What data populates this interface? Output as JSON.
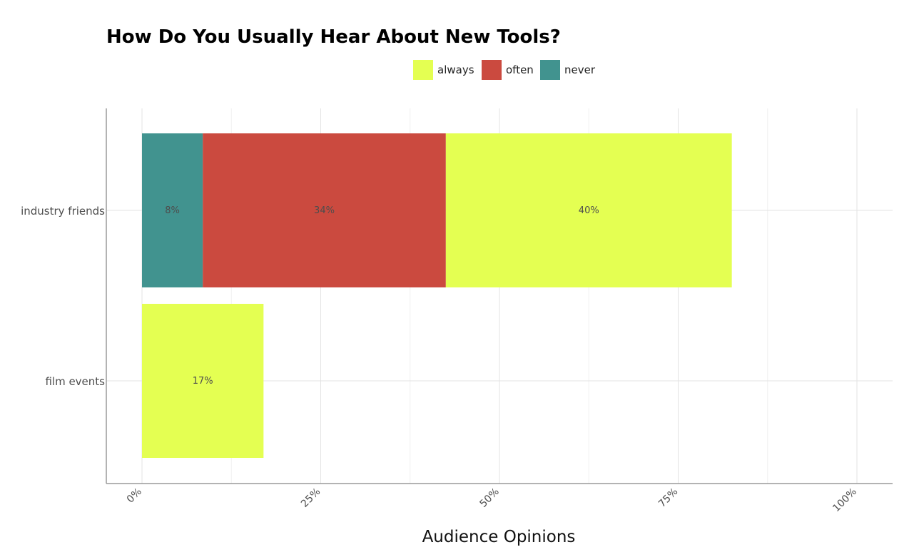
{
  "chart_data": {
    "type": "bar",
    "orientation": "horizontal",
    "stacked": true,
    "title": "How Do You Usually Hear About New Tools?",
    "xlabel": "Audience Opinions",
    "ylabel": "",
    "xlim": [
      0,
      100
    ],
    "x_ticks": [
      {
        "value": 0,
        "label": "0%"
      },
      {
        "value": 25,
        "label": "25%"
      },
      {
        "value": 50,
        "label": "50%"
      },
      {
        "value": 75,
        "label": "75%"
      },
      {
        "value": 100,
        "label": "100%"
      }
    ],
    "categories": [
      "industry friends",
      "film events"
    ],
    "stack_order": [
      "never",
      "often",
      "always"
    ],
    "series": [
      {
        "name": "always",
        "color": "#e4ff52",
        "values": [
          40,
          17
        ],
        "labels": [
          "40%",
          "17%"
        ]
      },
      {
        "name": "often",
        "color": "#cb4a3f",
        "values": [
          34,
          0
        ],
        "labels": [
          "34%",
          ""
        ]
      },
      {
        "name": "never",
        "color": "#41938f",
        "values": [
          8.5,
          0
        ],
        "labels": [
          "8%",
          ""
        ]
      }
    ],
    "legend": {
      "position": "top",
      "order": [
        "always",
        "often",
        "never"
      ]
    },
    "grid": true
  }
}
